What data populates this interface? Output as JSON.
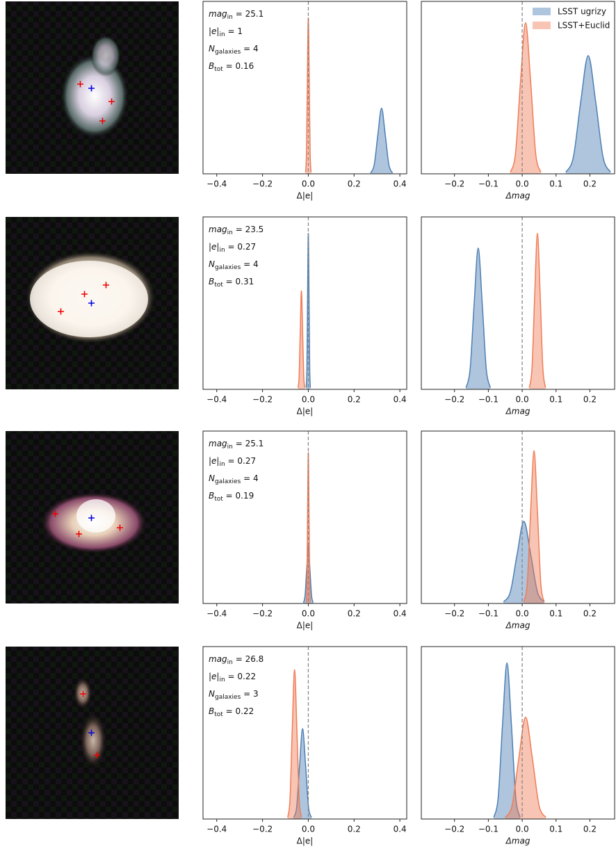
{
  "chart_data": [
    {
      "type": "density",
      "xlabel": "Δ|e|",
      "xlim": [
        -0.46,
        0.43
      ],
      "ylim": [
        0,
        1.05
      ],
      "xticks": [
        {
          "value": -0.4,
          "label": "−0.4"
        },
        {
          "value": -0.2,
          "label": "−0.2"
        },
        {
          "value": 0,
          "label": "0.0"
        },
        0.2,
        0.4
      ],
      "vline": 0,
      "annotations": [
        {
          "text": "mag",
          "sub": "in",
          "rest": " = 25.1"
        },
        {
          "text": "|e|",
          "sub": "in",
          "rest": " = 1"
        },
        {
          "text": "N",
          "sub": "galaxies",
          "rest": " = 4"
        },
        {
          "text": "B",
          "sub": "tot",
          "rest": " = 0.16"
        }
      ],
      "series": [
        {
          "color": "#4c7fb3",
          "x": [
            0.272,
            0.288,
            0.304,
            0.32,
            0.336,
            0.352,
            0.368
          ],
          "values": [
            0.005,
            0.055,
            0.24,
            0.4,
            0.24,
            0.055,
            0.005
          ]
        },
        {
          "color": "#f07c56",
          "x": [
            -0.012,
            -0.008,
            -0.004,
            0,
            0.004,
            0.008,
            0.012
          ],
          "values": [
            0.01,
            0.13,
            0.58,
            0.95,
            0.58,
            0.13,
            0.01
          ]
        }
      ]
    },
    {
      "type": "density",
      "xlabel": "Δmag",
      "xlim": [
        -0.298,
        0.273
      ],
      "ylim": [
        0,
        1.05
      ],
      "xticks": [
        {
          "value": -0.2,
          "label": "−0.2"
        },
        {
          "value": -0.1,
          "label": "−0.1"
        },
        {
          "value": 0,
          "label": "0.0"
        },
        0.1,
        0.2
      ],
      "vline": 0,
      "legend": "upper right",
      "series": [
        {
          "name": "LSST ugrizy",
          "color": "#4c7fb3",
          "x": [
            0.129,
            0.151,
            0.173,
            0.195,
            0.217,
            0.239,
            0.261
          ],
          "values": [
            0.01,
            0.1,
            0.44,
            0.72,
            0.44,
            0.1,
            0.01
          ]
        },
        {
          "name": "LSST+Euclid",
          "color": "#f07c56",
          "x": [
            -0.035,
            -0.02,
            -0.005,
            0.01,
            0.025,
            0.04,
            0.055
          ],
          "values": [
            0.01,
            0.12,
            0.56,
            0.92,
            0.56,
            0.12,
            0.01
          ]
        }
      ]
    },
    {
      "type": "density",
      "xlabel": "Δ|e|",
      "xlim": [
        -0.46,
        0.43
      ],
      "ylim": [
        0,
        1.05
      ],
      "xticks": [
        {
          "value": -0.4,
          "label": "−0.4"
        },
        {
          "value": -0.2,
          "label": "−0.2"
        },
        {
          "value": 0,
          "label": "0.0"
        },
        0.2,
        0.4
      ],
      "vline": 0,
      "annotations": [
        {
          "text": "mag",
          "sub": "in",
          "rest": " = 23.5"
        },
        {
          "text": "|e|",
          "sub": "in",
          "rest": " = 0.27"
        },
        {
          "text": "N",
          "sub": "galaxies",
          "rest": " = 4"
        },
        {
          "text": "B",
          "sub": "tot",
          "rest": " = 0.31"
        }
      ],
      "series": [
        {
          "color": "#4c7fb3",
          "x": [
            -0.009,
            -0.006,
            -0.003,
            0,
            0.003,
            0.006,
            0.009
          ],
          "values": [
            0.01,
            0.13,
            0.58,
            0.95,
            0.58,
            0.13,
            0.01
          ]
        },
        {
          "color": "#f07c56",
          "x": [
            -0.045,
            -0.04,
            -0.035,
            -0.03,
            -0.025,
            -0.02,
            -0.015
          ],
          "values": [
            0.01,
            0.08,
            0.36,
            0.6,
            0.36,
            0.08,
            0.01
          ]
        }
      ]
    },
    {
      "type": "density",
      "xlabel": "Δmag",
      "xlim": [
        -0.298,
        0.273
      ],
      "ylim": [
        0,
        1.05
      ],
      "xticks": [
        {
          "value": -0.2,
          "label": "−0.2"
        },
        {
          "value": -0.1,
          "label": "−0.1"
        },
        {
          "value": 0,
          "label": "0.0"
        },
        0.1,
        0.2
      ],
      "vline": 0,
      "series": [
        {
          "color": "#4c7fb3",
          "x": [
            -0.166,
            -0.154,
            -0.142,
            -0.13,
            -0.118,
            -0.106,
            -0.094
          ],
          "values": [
            0.01,
            0.12,
            0.52,
            0.86,
            0.52,
            0.12,
            0.01
          ]
        },
        {
          "color": "#f07c56",
          "x": [
            0.021,
            0.029,
            0.037,
            0.045,
            0.053,
            0.061,
            0.069
          ],
          "values": [
            0.01,
            0.13,
            0.58,
            0.95,
            0.58,
            0.13,
            0.01
          ]
        }
      ]
    },
    {
      "type": "density",
      "xlabel": "Δ|e|",
      "xlim": [
        -0.46,
        0.43
      ],
      "ylim": [
        0,
        1.05
      ],
      "xticks": [
        {
          "value": -0.4,
          "label": "−0.4"
        },
        {
          "value": -0.2,
          "label": "−0.2"
        },
        {
          "value": 0,
          "label": "0.0"
        },
        0.2,
        0.4
      ],
      "vline": 0,
      "annotations": [
        {
          "text": "mag",
          "sub": "in",
          "rest": " = 25.1"
        },
        {
          "text": "|e|",
          "sub": "in",
          "rest": " = 0.27"
        },
        {
          "text": "N",
          "sub": "galaxies",
          "rest": " = 4"
        },
        {
          "text": "B",
          "sub": "tot",
          "rest": " = 0.19"
        }
      ],
      "series": [
        {
          "color": "#4c7fb3",
          "x": [
            -0.021,
            -0.014,
            -0.007,
            0,
            0.007,
            0.014,
            0.021
          ],
          "values": [
            0.005,
            0.05,
            0.21,
            0.35,
            0.21,
            0.05,
            0.005
          ]
        },
        {
          "color": "#f07c56",
          "x": [
            -0.009,
            -0.006,
            -0.003,
            0,
            0.003,
            0.006,
            0.009
          ],
          "values": [
            0.01,
            0.12,
            0.56,
            0.92,
            0.56,
            0.12,
            0.01
          ]
        }
      ]
    },
    {
      "type": "density",
      "xlabel": "Δmag",
      "xlim": [
        -0.298,
        0.273
      ],
      "ylim": [
        0,
        1.05
      ],
      "xticks": [
        {
          "value": -0.2,
          "label": "−0.2"
        },
        {
          "value": -0.1,
          "label": "−0.1"
        },
        {
          "value": 0,
          "label": "0.0"
        },
        0.1,
        0.2
      ],
      "vline": 0,
      "series": [
        {
          "color": "#4c7fb3",
          "x": [
            -0.055,
            -0.035,
            -0.015,
            0.005,
            0.025,
            0.045,
            0.065
          ],
          "values": [
            0.01,
            0.07,
            0.3,
            0.5,
            0.3,
            0.07,
            0.01
          ]
        },
        {
          "color": "#f07c56",
          "x": [
            0.005,
            0.015,
            0.025,
            0.035,
            0.045,
            0.055,
            0.065
          ],
          "values": [
            0.01,
            0.12,
            0.56,
            0.93,
            0.56,
            0.12,
            0.01
          ]
        }
      ]
    },
    {
      "type": "density",
      "xlabel": "Δ|e|",
      "xlim": [
        -0.46,
        0.43
      ],
      "ylim": [
        0,
        1.05
      ],
      "xticks": [
        {
          "value": -0.4,
          "label": "−0.4"
        },
        {
          "value": -0.2,
          "label": "−0.2"
        },
        {
          "value": 0,
          "label": "0.0"
        },
        0.2,
        0.4
      ],
      "vline": 0,
      "annotations": [
        {
          "text": "mag",
          "sub": "in",
          "rest": " = 26.8"
        },
        {
          "text": "|e|",
          "sub": "in",
          "rest": " = 0.22"
        },
        {
          "text": "N",
          "sub": "galaxies",
          "rest": " = 3"
        },
        {
          "text": "B",
          "sub": "tot",
          "rest": " = 0.22"
        }
      ],
      "series": [
        {
          "color": "#4c7fb3",
          "x": [
            -0.064,
            -0.051,
            -0.038,
            -0.025,
            -0.012,
            0.001,
            0.014
          ],
          "values": [
            0.01,
            0.07,
            0.33,
            0.55,
            0.33,
            0.07,
            0.01
          ]
        },
        {
          "color": "#f07c56",
          "x": [
            -0.09,
            -0.08,
            -0.07,
            -0.06,
            -0.05,
            -0.04,
            -0.03
          ],
          "values": [
            0.01,
            0.12,
            0.55,
            0.91,
            0.55,
            0.12,
            0.01
          ]
        }
      ]
    },
    {
      "type": "density",
      "xlabel": "Δmag",
      "xlim": [
        -0.298,
        0.273
      ],
      "ylim": [
        0,
        1.05
      ],
      "xticks": [
        {
          "value": -0.2,
          "label": "−0.2"
        },
        {
          "value": -0.1,
          "label": "−0.1"
        },
        {
          "value": 0,
          "label": "0.0"
        },
        0.1,
        0.2
      ],
      "vline": 0,
      "series": [
        {
          "color": "#4c7fb3",
          "x": [
            -0.084,
            -0.071,
            -0.058,
            -0.045,
            -0.032,
            -0.019,
            -0.006
          ],
          "values": [
            0.01,
            0.13,
            0.58,
            0.95,
            0.58,
            0.13,
            0.01
          ]
        },
        {
          "color": "#f07c56",
          "x": [
            -0.05,
            -0.03,
            -0.01,
            0.01,
            0.03,
            0.05,
            0.07
          ],
          "values": [
            0.01,
            0.08,
            0.37,
            0.62,
            0.37,
            0.08,
            0.01
          ]
        }
      ]
    }
  ]
}
